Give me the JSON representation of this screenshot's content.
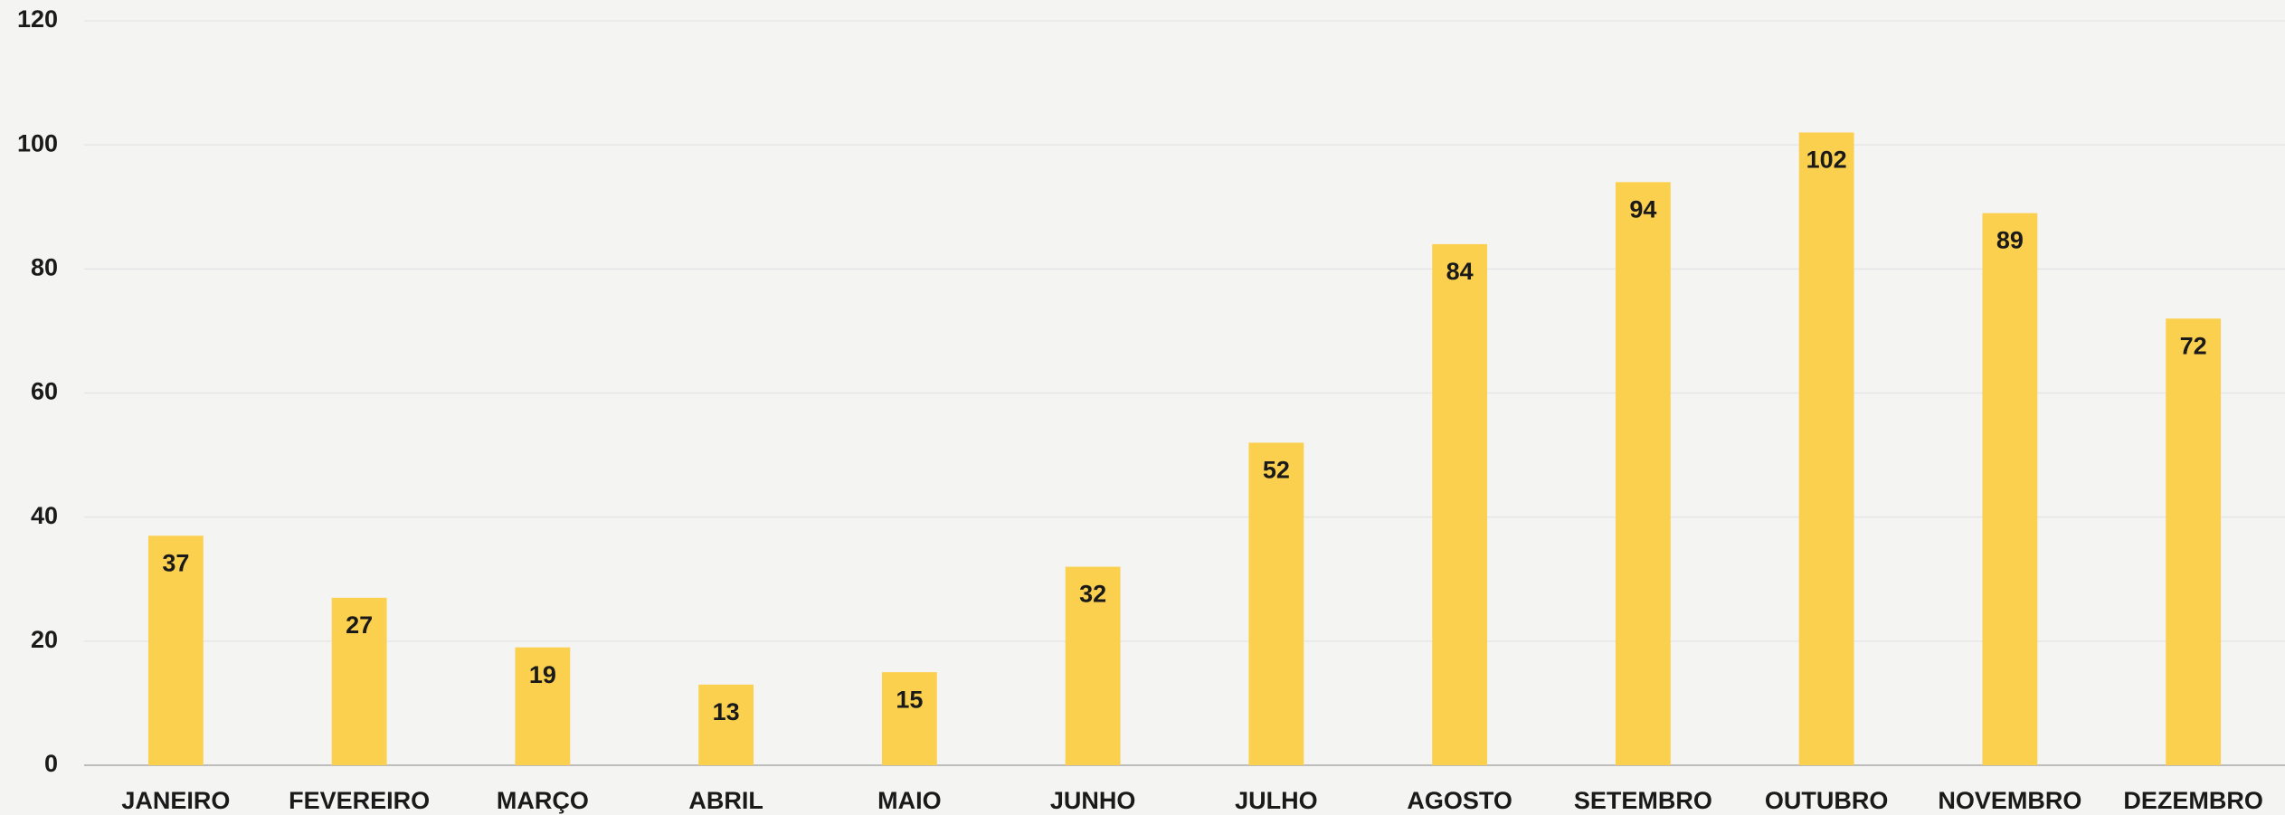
{
  "chart_data": {
    "type": "bar",
    "categories": [
      "JANEIRO",
      "FEVEREIRO",
      "MARÇO",
      "ABRIL",
      "MAIO",
      "JUNHO",
      "JULHO",
      "AGOSTO",
      "SETEMBRO",
      "OUTUBRO",
      "NOVEMBRO",
      "DEZEMBRO"
    ],
    "values": [
      37,
      27,
      19,
      13,
      15,
      32,
      52,
      84,
      94,
      102,
      89,
      72
    ],
    "color": "#fcd04f",
    "ylim": [
      0,
      120
    ],
    "yticks": [
      0,
      20,
      40,
      60,
      80,
      100,
      120
    ],
    "grid": true
  }
}
